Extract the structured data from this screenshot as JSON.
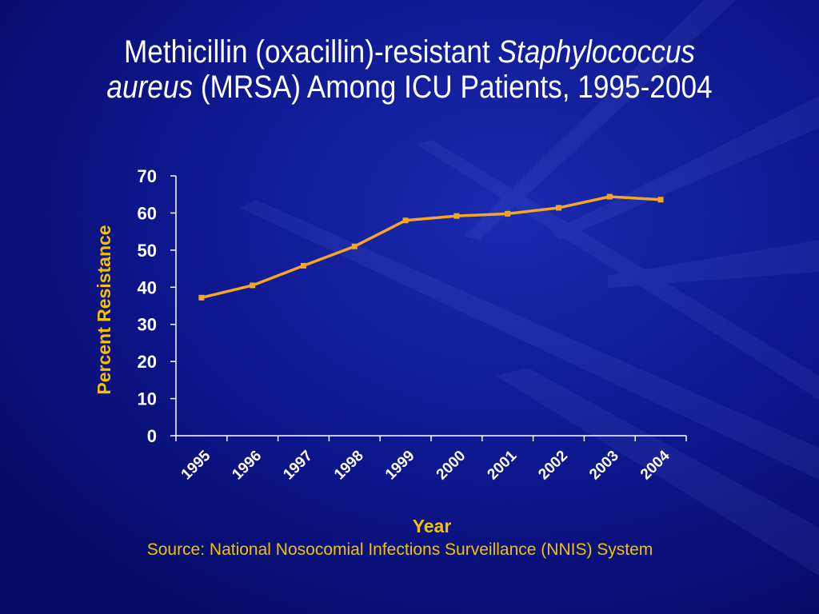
{
  "slide": {
    "title_line1_plain": "Methicillin (oxacillin)-resistant ",
    "title_line1_italic": "Staphylococcus",
    "title_line2_italic": "aureus",
    "title_line2_plain": " (MRSA) Among ICU Patients, 1995-2004",
    "source": "Source: National Nosocomial Infections Surveillance (NNIS) System"
  },
  "colors": {
    "background": "#0a0f78",
    "title_text": "#ffffff",
    "axis_text": "#ffffff",
    "label_text": "#f2c200",
    "line": "#f5a623",
    "marker": "#f5a623",
    "axis_line": "#ffffff"
  },
  "chart_data": {
    "type": "line",
    "xlabel": "Year",
    "ylabel": "Percent Resistance",
    "categories": [
      "1995",
      "1996",
      "1997",
      "1998",
      "1999",
      "2000",
      "2001",
      "2002",
      "2003",
      "2004"
    ],
    "values": [
      37.2,
      40.5,
      45.8,
      51.0,
      58.0,
      59.2,
      59.8,
      61.4,
      64.4,
      63.6
    ],
    "ylim": [
      0,
      70
    ],
    "yticks": [
      0,
      10,
      20,
      30,
      40,
      50,
      60,
      70
    ],
    "grid": false,
    "legend": "none"
  }
}
